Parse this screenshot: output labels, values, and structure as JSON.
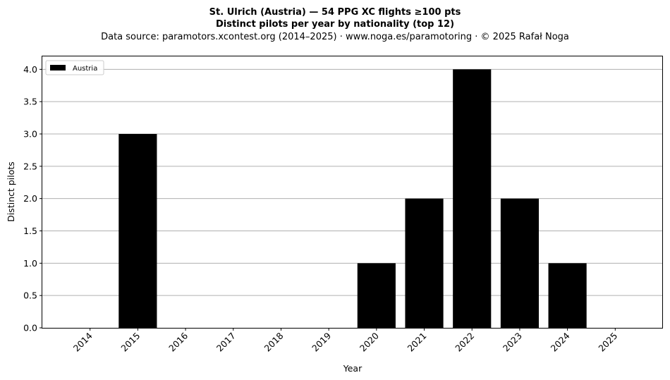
{
  "chart_data": {
    "type": "bar",
    "title": "St. Ulrich (Austria)  —  54 PPG XC flights ≥100 pts",
    "subtitle": "Distinct pilots per year by nationality (top 12)",
    "source": "Data source: paramotors.xcontest.org (2014–2025)  ·  www.noga.es/paramotoring  ·  © 2025 Rafał Noga",
    "xlabel": "Year",
    "ylabel": "Distinct pilots",
    "categories": [
      "2014",
      "2015",
      "2016",
      "2017",
      "2018",
      "2019",
      "2020",
      "2021",
      "2022",
      "2023",
      "2024",
      "2025"
    ],
    "series": [
      {
        "name": "Austria",
        "color": "#000000",
        "values": [
          0,
          3,
          0,
          0,
          0,
          0,
          1,
          2,
          4,
          2,
          1,
          0
        ]
      }
    ],
    "ylim": [
      0,
      4.2
    ],
    "yticks": [
      0.0,
      0.5,
      1.0,
      1.5,
      2.0,
      2.5,
      3.0,
      3.5,
      4.0
    ],
    "grid": "y",
    "legend_position": "top-left"
  }
}
